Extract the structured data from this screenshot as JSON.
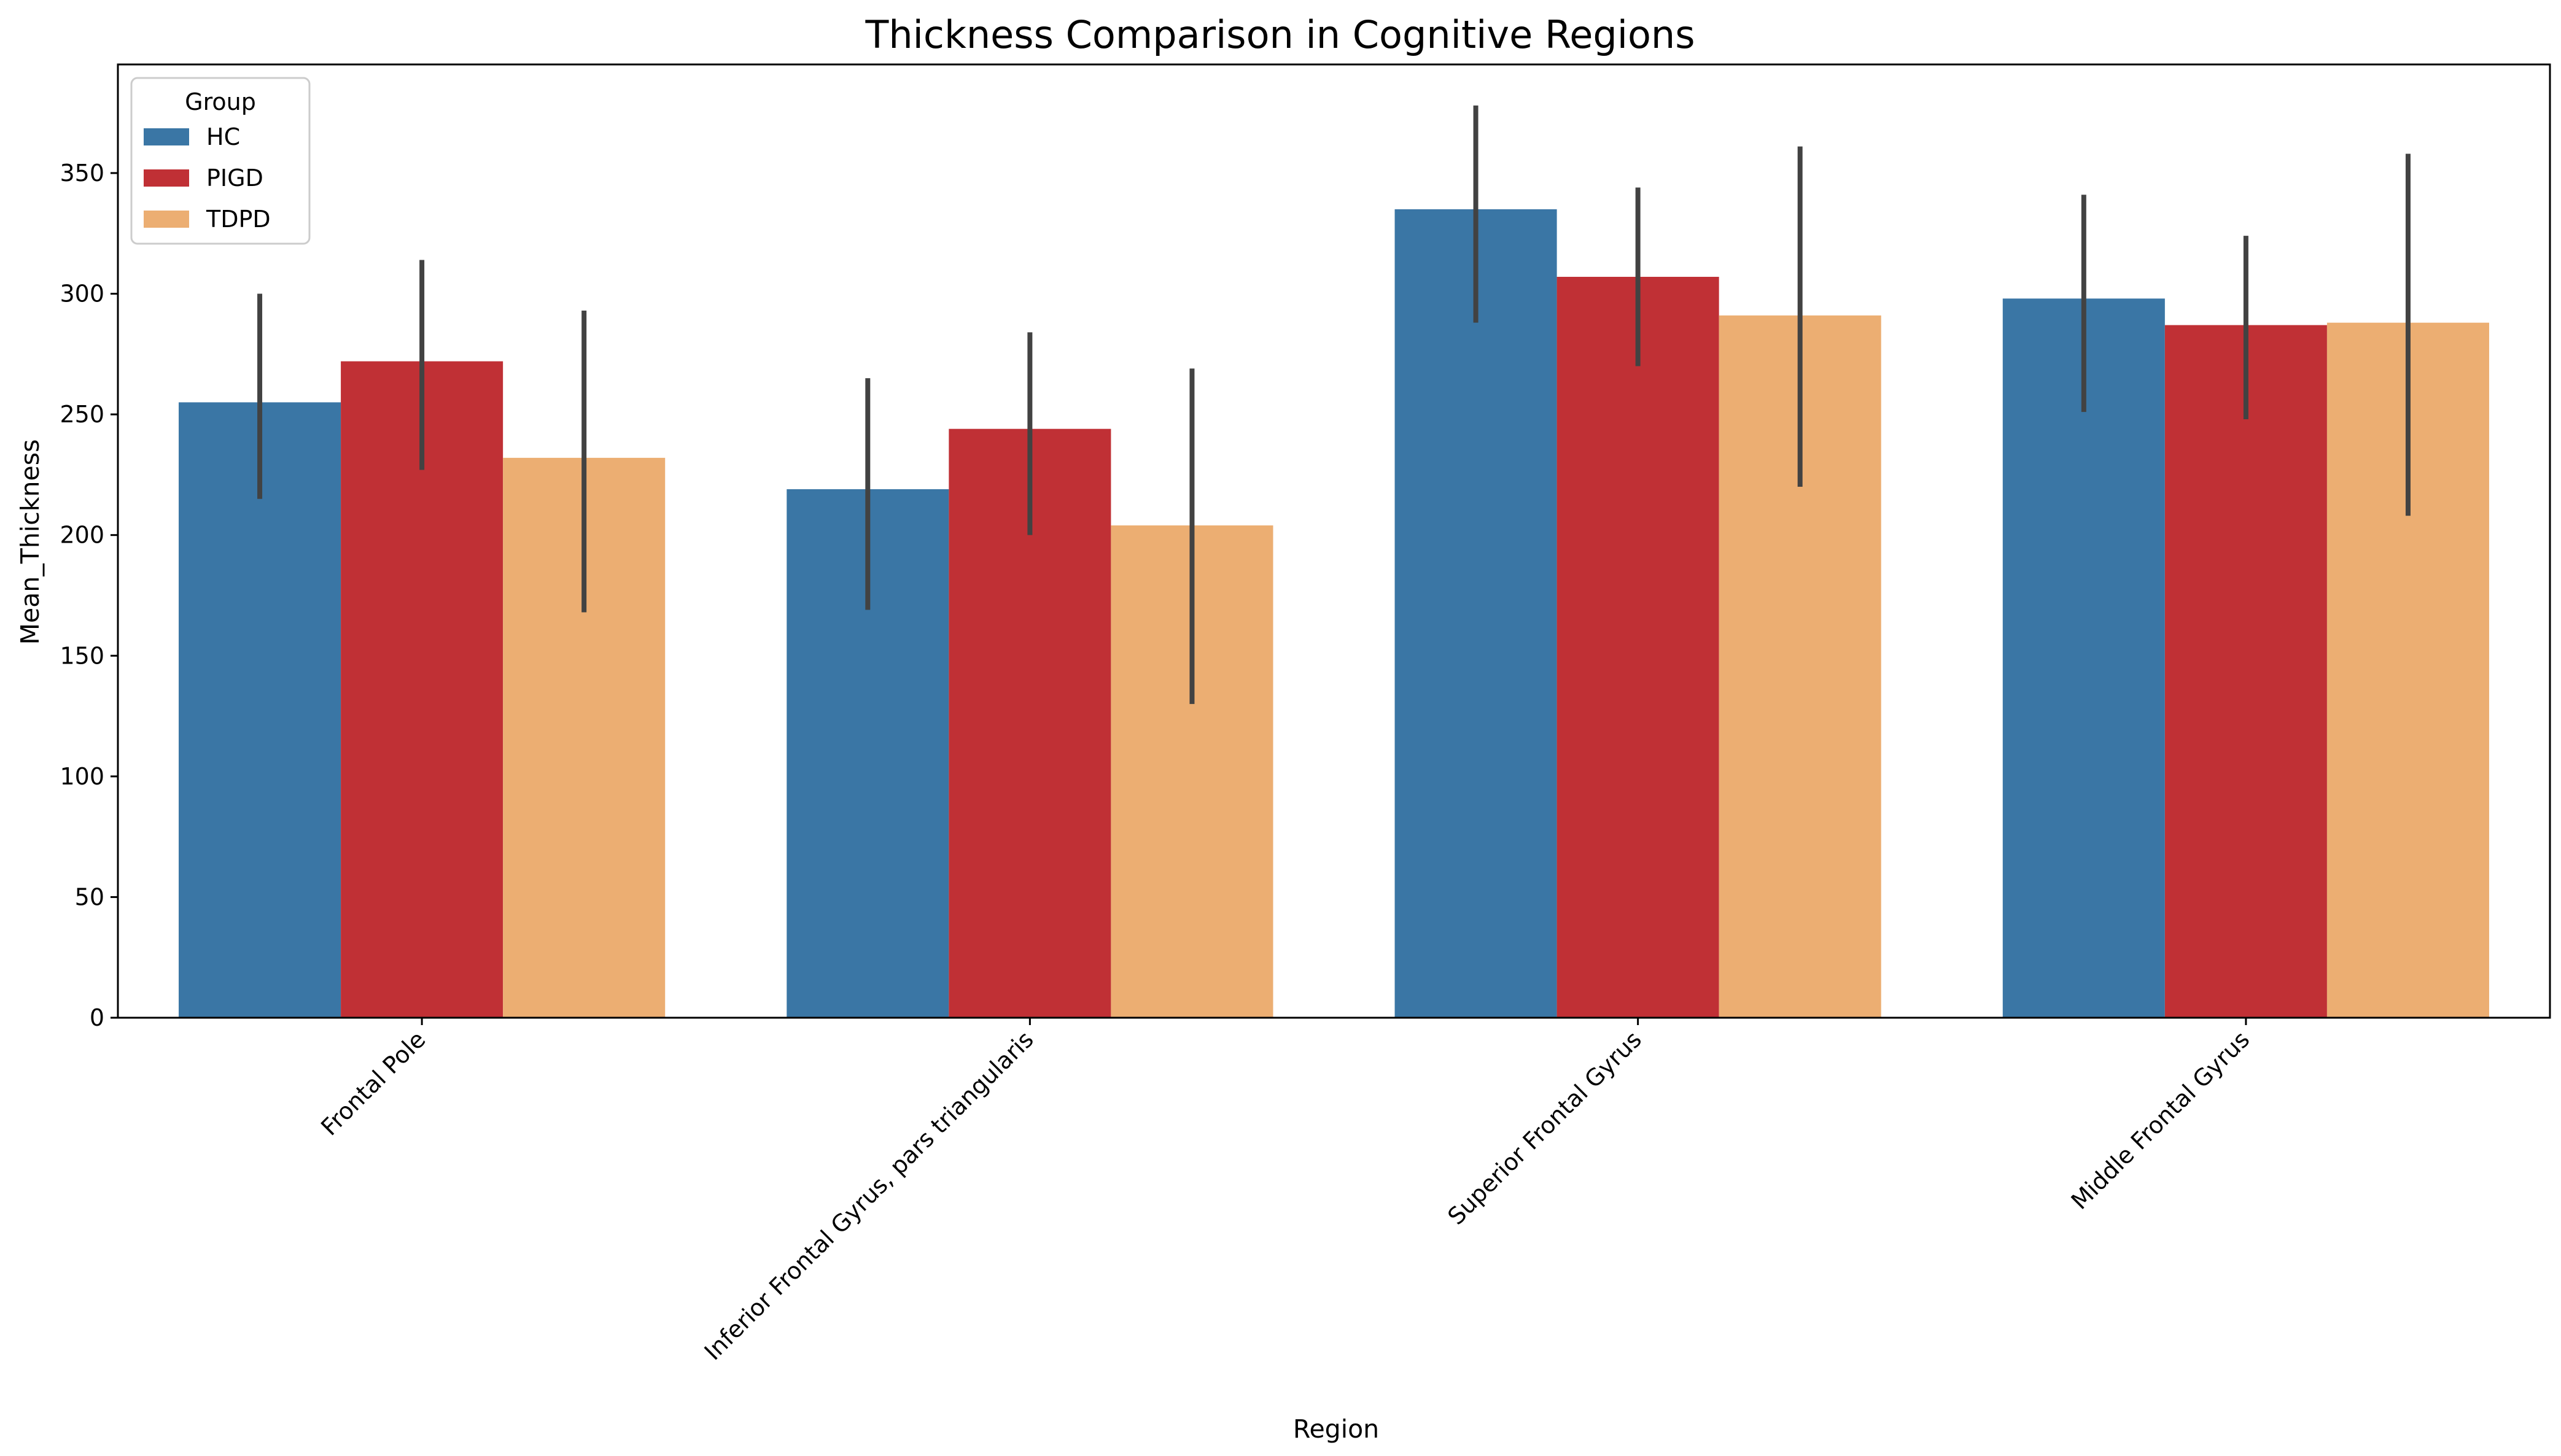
{
  "chart_data": {
    "type": "bar",
    "title": "Thickness Comparison in Cognitive Regions",
    "xlabel": "Region",
    "ylabel": "Mean_Thickness",
    "ylim": [
      0,
      395
    ],
    "yticks": [
      0,
      50,
      100,
      150,
      200,
      250,
      300,
      350
    ],
    "categories": [
      "Frontal Pole",
      "Inferior Frontal Gyrus, pars triangularis",
      "Superior Frontal Gyrus",
      "Middle Frontal Gyrus"
    ],
    "legend": {
      "title": "Group",
      "placement": "top-left"
    },
    "grid": false,
    "series": [
      {
        "name": "HC",
        "color": "#3a76a5",
        "values": [
          255,
          219,
          335,
          298
        ],
        "error_low": [
          215,
          169,
          288,
          251
        ],
        "error_high": [
          300,
          265,
          378,
          341
        ]
      },
      {
        "name": "PIGD",
        "color": "#c03035",
        "values": [
          272,
          244,
          307,
          287
        ],
        "error_low": [
          227,
          200,
          270,
          248
        ],
        "error_high": [
          314,
          284,
          344,
          324
        ]
      },
      {
        "name": "TDPD",
        "color": "#ecae72",
        "values": [
          232,
          204,
          291,
          288
        ],
        "error_low": [
          168,
          130,
          220,
          208
        ],
        "error_high": [
          293,
          269,
          361,
          358
        ]
      }
    ]
  }
}
